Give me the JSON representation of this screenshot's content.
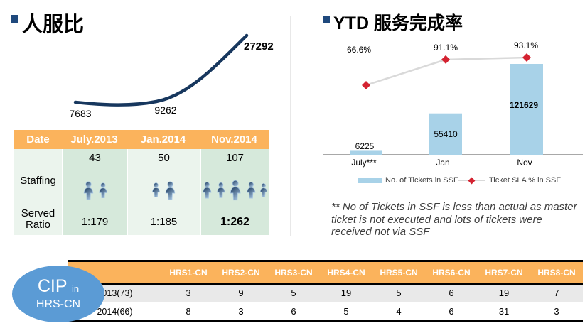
{
  "slide": {
    "left": {
      "title": "人服比",
      "table": {
        "header": [
          "Date",
          "July.2013",
          "Jan.2014",
          "Nov.2014"
        ],
        "staffing_label": "Staffing",
        "staffing_values": [
          "43",
          "50",
          "107"
        ],
        "staffing_icon_counts": [
          2,
          2,
          5
        ],
        "served_label_line1": "Served",
        "served_label_line2": "Ratio",
        "served_values": [
          "1:179",
          "1:185",
          "1:262"
        ]
      }
    },
    "right": {
      "title": "YTD 服务完成率",
      "pct_labels": [
        "66.6%",
        "91.1%",
        "93.1%"
      ],
      "bar_labels": [
        "6225",
        "55410",
        "121629"
      ],
      "x_labels": [
        "July***",
        "Jan",
        "Nov"
      ],
      "legend": [
        "No. of Tickets in SSF",
        "Ticket SLA % in SSF"
      ],
      "footnote_lines": [
        "** No of Tickets in SSF is less than actual as master",
        "ticket is not executed and lots of tickets were",
        "received not via SSF"
      ]
    },
    "bottom": {
      "badge_main": "CIP",
      "badge_sub": "in",
      "badge_line2": "HRS-CN",
      "header": [
        "HRS1-CN",
        "HRS2-CN",
        "HRS3-CN",
        "HRS4-CN",
        "HRS5-CN",
        "HRS6-CN",
        "HRS7-CN",
        "HRS8-CN"
      ],
      "rows": [
        {
          "label": "2013(73)",
          "values": [
            "3",
            "9",
            "5",
            "19",
            "5",
            "6",
            "19",
            "7"
          ]
        },
        {
          "label": "2014(66)",
          "values": [
            "8",
            "3",
            "6",
            "5",
            "4",
            "6",
            "31",
            "3"
          ]
        }
      ]
    }
  },
  "chart_data": [
    {
      "type": "line",
      "title": "人服比",
      "x": [
        "July.2013",
        "Jan.2014",
        "Nov.2014"
      ],
      "values": [
        7683,
        9262,
        27292
      ],
      "value_labels": [
        "7683",
        "9262",
        "27292"
      ],
      "line_color": "#17375E",
      "grid": false,
      "axes_visible": false
    },
    {
      "type": "bar",
      "title": "YTD 服务完成率",
      "categories": [
        "July***",
        "Jan",
        "Nov"
      ],
      "series": [
        {
          "name": "No. of Tickets in SSF",
          "kind": "bar",
          "values": [
            6225,
            55410,
            121629
          ],
          "color": "#A8D2E8"
        },
        {
          "name": "Ticket SLA % in SSF",
          "kind": "line",
          "values": [
            66.6,
            91.1,
            93.1
          ],
          "labels": [
            "66.6%",
            "91.1%",
            "93.1%"
          ],
          "marker": "diamond",
          "marker_color": "#D42331",
          "line_color": "#D9D9D9"
        }
      ],
      "ylim": [
        0,
        130000
      ],
      "grid": false,
      "legend_position": "bottom",
      "footnote": "** No of Tickets in SSF is less than actual as master ticket is not executed and lots of tickets were received not via SSF"
    }
  ],
  "colors": {
    "accent_orange": "#FBB35C",
    "green_light": "#EBF4ED",
    "green_dark": "#D6E9DB",
    "bullet_navy": "#1F497D",
    "curve_navy": "#17375E",
    "bar_blue": "#A8D2E8",
    "marker_red": "#D42331",
    "line_gray": "#D9D9D9",
    "ellipse_blue": "#5B9BD5",
    "row_gray": "#E9E9E9"
  }
}
